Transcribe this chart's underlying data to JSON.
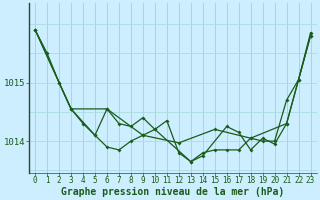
{
  "bg_color": "#cceeff",
  "plot_bg_color": "#cceeff",
  "line_color": "#1a5c1a",
  "vgrid_color": "#e8b4b4",
  "hgrid_color": "#aadddd",
  "xlabel": "Graphe pression niveau de la mer (hPa)",
  "xlabel_fontsize": 7,
  "yticks": [
    1014,
    1015
  ],
  "ytick_fontsize": 6.5,
  "xtick_fontsize": 5.5,
  "xlim": [
    -0.5,
    23.5
  ],
  "ylim": [
    1013.45,
    1016.35
  ],
  "series": {
    "line1": {
      "x": [
        0,
        1,
        2,
        3,
        4,
        5,
        6,
        7,
        8,
        9,
        10,
        11,
        12,
        13,
        14,
        15,
        16,
        17,
        18,
        19,
        20,
        21,
        22,
        23
      ],
      "y": [
        1015.9,
        1015.5,
        1015.0,
        1014.55,
        1014.3,
        1014.1,
        1013.9,
        1013.85,
        1014.0,
        1014.1,
        1014.2,
        1014.35,
        1013.8,
        1013.65,
        1013.8,
        1013.85,
        1013.85,
        1013.85,
        1014.05,
        1014.0,
        1014.0,
        1014.7,
        1015.05,
        1015.85
      ]
    },
    "line2": {
      "x": [
        0,
        2,
        3,
        5,
        6,
        7,
        8,
        9,
        10,
        13,
        14,
        16,
        17,
        18,
        19,
        20,
        21,
        22,
        23
      ],
      "y": [
        1015.9,
        1015.0,
        1014.55,
        1014.1,
        1014.55,
        1014.3,
        1014.25,
        1014.4,
        1014.2,
        1013.65,
        1013.75,
        1014.25,
        1014.15,
        1013.85,
        1014.05,
        1013.95,
        1014.3,
        1015.05,
        1015.8
      ]
    },
    "line3": {
      "x": [
        0,
        3,
        6,
        9,
        12,
        15,
        18,
        21,
        23
      ],
      "y": [
        1015.9,
        1014.55,
        1014.55,
        1014.1,
        1013.97,
        1014.2,
        1014.05,
        1014.3,
        1015.8
      ]
    }
  }
}
